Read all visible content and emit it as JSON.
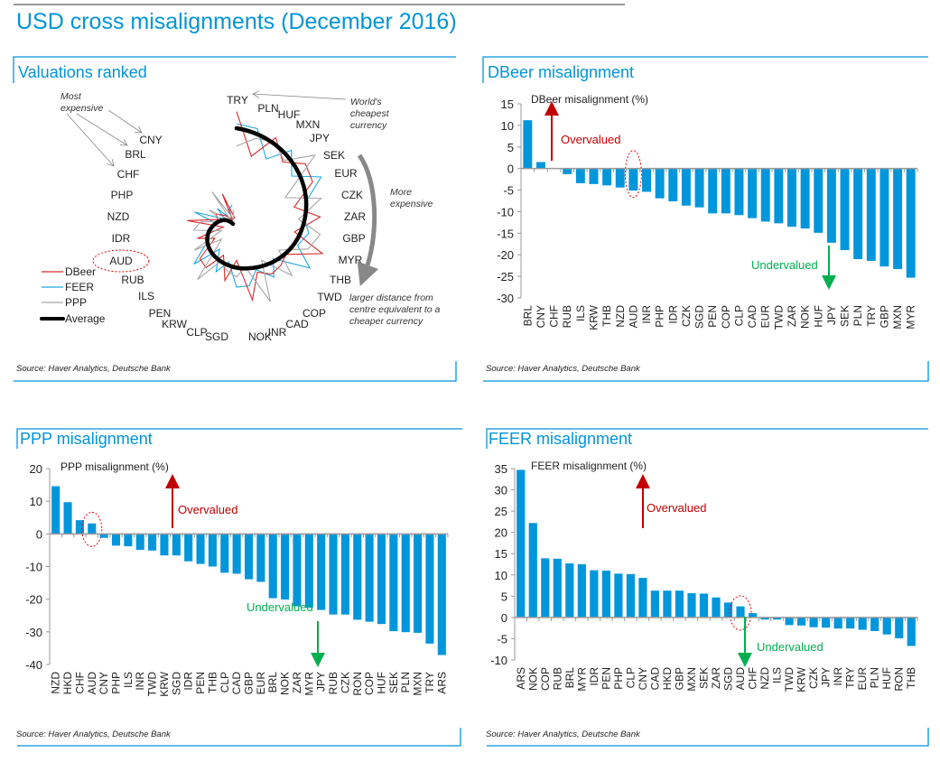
{
  "title": "USD cross misalignments (December 2016)",
  "colors": {
    "accent": "#0095d9",
    "bar": "#0096db",
    "overvalued": "#c00000",
    "undervalued": "#00b050",
    "dbeer": "#d42a2a",
    "feer": "#1ea7e1",
    "ppp": "#a6a6a6",
    "average": "#000000"
  },
  "panels": {
    "valuations": {
      "title": "Valuations ranked",
      "source": "Source: Haver Analytics, Deutsche Bank",
      "most_expensive": [
        "Most",
        "expensive"
      ],
      "worlds_cheapest": [
        "World's",
        "cheapest",
        "currency"
      ],
      "more_expensive": [
        "More",
        "expensive"
      ],
      "distance_note": [
        "larger distance  from",
        "centre equivalent to a",
        "cheaper currency"
      ],
      "legend": [
        "DBeer",
        "FEER",
        "PPP",
        "Average"
      ]
    },
    "dbeer": {
      "title": "DBeer misalignment",
      "source": "Source: Haver Analytics, Deutsche Bank"
    },
    "ppp": {
      "title": "PPP misalignment",
      "source": "Source: Haver Analytics, Deutsche Bank"
    },
    "feer": {
      "title": "FEER misalignment",
      "source": "Source: Haver Analytics, Deutsche Bank"
    }
  },
  "chart_data": [
    {
      "id": "valuations",
      "type": "radar",
      "title": "Valuations ranked",
      "categories": [
        "TRY",
        "PLN",
        "HUF",
        "MXN",
        "JPY",
        "SEK",
        "EUR",
        "CZK",
        "ZAR",
        "GBP",
        "MYR",
        "THB",
        "TWD",
        "COP",
        "CAD",
        "INR",
        "NOK",
        "SGD",
        "CLP",
        "KRW",
        "PEN",
        "ILS",
        "RUB",
        "AUD",
        "IDR",
        "NZD",
        "PHP",
        "CHF",
        "BRL",
        "CNY"
      ],
      "highlight": "AUD",
      "series": [
        {
          "name": "DBeer"
        },
        {
          "name": "FEER"
        },
        {
          "name": "PPP"
        },
        {
          "name": "Average"
        }
      ]
    },
    {
      "id": "dbeer",
      "type": "bar",
      "title": "DBeer misalignment  (%)",
      "ylim": [
        -30,
        15
      ],
      "yticks": [
        15,
        10,
        5,
        0,
        -5,
        -10,
        -15,
        -20,
        -25,
        -30
      ],
      "categories": [
        "BRL",
        "CNY",
        "CHF",
        "RUB",
        "ILS",
        "KRW",
        "THB",
        "NZD",
        "AUD",
        "INR",
        "PHP",
        "IDR",
        "CZK",
        "SGD",
        "PEN",
        "COP",
        "CLP",
        "CAD",
        "EUR",
        "TWD",
        "ZAR",
        "NOK",
        "HUF",
        "JPY",
        "SEK",
        "PLN",
        "TRY",
        "GBP",
        "MXN",
        "MYR"
      ],
      "values": [
        11.2,
        1.5,
        0.1,
        -1.3,
        -3.4,
        -3.6,
        -3.9,
        -4.4,
        -5.1,
        -5.4,
        -6.9,
        -7.6,
        -8.6,
        -9.0,
        -10.4,
        -10.4,
        -10.8,
        -11.5,
        -12.3,
        -12.7,
        -13.5,
        -13.9,
        -14.9,
        -17.2,
        -18.9,
        -21.0,
        -21.4,
        -22.7,
        -23.3,
        -25.3
      ],
      "highlight": "AUD",
      "annotations": {
        "overvalued": "Overvalued",
        "undervalued": "Undervalued"
      }
    },
    {
      "id": "ppp",
      "type": "bar",
      "title": "PPP misalignment  (%)",
      "ylim": [
        -40,
        20
      ],
      "yticks": [
        20,
        10,
        0,
        -10,
        -20,
        -30,
        -40
      ],
      "categories": [
        "NZD",
        "HKD",
        "CHF",
        "AUD",
        "CNY",
        "PHP",
        "ILS",
        "INR",
        "TWD",
        "KRW",
        "SGD",
        "IDR",
        "PEN",
        "THB",
        "CLP",
        "CAD",
        "GBP",
        "EUR",
        "BRL",
        "NOK",
        "ZAR",
        "MYR",
        "JPY",
        "RUB",
        "CZK",
        "RON",
        "COP",
        "HUF",
        "SEK",
        "PLN",
        "MXN",
        "TRY",
        "ARS"
      ],
      "values": [
        14.6,
        9.7,
        4.2,
        3.2,
        -1.2,
        -3.6,
        -3.8,
        -4.9,
        -5.1,
        -6.6,
        -6.6,
        -8.4,
        -9.2,
        -10.0,
        -11.9,
        -12.2,
        -13.9,
        -14.7,
        -19.7,
        -20.1,
        -22.2,
        -22.6,
        -23.3,
        -24.7,
        -24.7,
        -26.3,
        -26.9,
        -27.6,
        -29.8,
        -30.1,
        -30.3,
        -33.6,
        -37.1
      ],
      "highlight": "AUD",
      "annotations": {
        "overvalued": "Overvalued",
        "undervalued": "Undervalued"
      }
    },
    {
      "id": "feer",
      "type": "bar",
      "title": "FEER misalignment  (%)",
      "ylim": [
        -10,
        35
      ],
      "yticks": [
        35,
        30,
        25,
        20,
        15,
        10,
        5,
        0,
        -5,
        -10
      ],
      "categories": [
        "ARS",
        "NOK",
        "COP",
        "RUB",
        "BRL",
        "MYR",
        "IDR",
        "PEN",
        "PHP",
        "CLP",
        "CNY",
        "CAD",
        "HKD",
        "GBP",
        "MXN",
        "SEK",
        "ZAR",
        "SGD",
        "AUD",
        "CHF",
        "NZD",
        "ILS",
        "TWD",
        "KRW",
        "CZK",
        "JPY",
        "INR",
        "TRY",
        "EUR",
        "PLN",
        "HUF",
        "RON",
        "THB"
      ],
      "values": [
        34.7,
        22.2,
        13.9,
        13.8,
        12.7,
        12.5,
        11.1,
        11.0,
        10.3,
        10.2,
        9.3,
        6.3,
        6.3,
        6.3,
        5.7,
        5.6,
        4.7,
        3.5,
        2.6,
        1.0,
        -0.5,
        -0.5,
        -1.8,
        -1.9,
        -2.3,
        -2.4,
        -2.6,
        -2.6,
        -2.9,
        -3.2,
        -4.0,
        -4.9,
        -6.7
      ],
      "highlight": "AUD",
      "annotations": {
        "overvalued": "Overvalued",
        "undervalued": "Undervalued"
      }
    }
  ]
}
